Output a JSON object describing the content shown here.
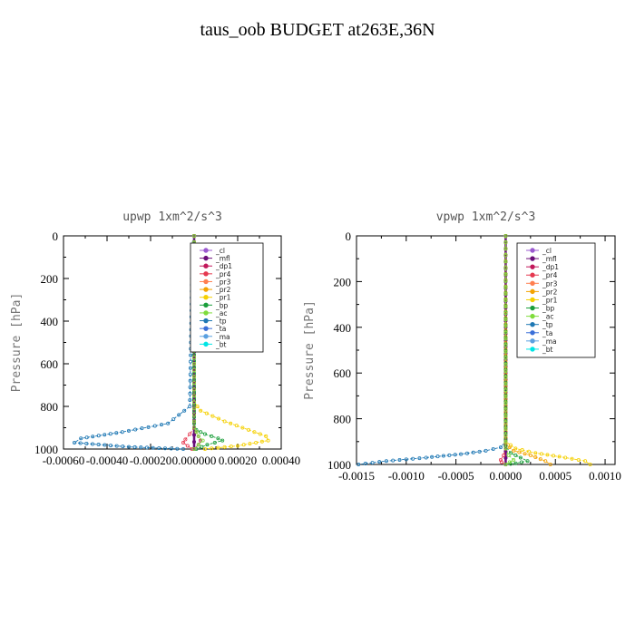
{
  "title": "taus_oob  BUDGET at263E,36N",
  "legend": [
    {
      "name": "_cl",
      "color": "#9b59d0"
    },
    {
      "name": "_mfl",
      "color": "#6a0d7a"
    },
    {
      "name": "_dp1",
      "color": "#c2185b"
    },
    {
      "name": "_pr4",
      "color": "#e53950"
    },
    {
      "name": "_pr3",
      "color": "#ff7f50"
    },
    {
      "name": "_pr2",
      "color": "#f4a300"
    },
    {
      "name": "_pr1",
      "color": "#f5d000"
    },
    {
      "name": "_bp",
      "color": "#1a9e3a"
    },
    {
      "name": "_ac",
      "color": "#7fdc3c"
    },
    {
      "name": "_tp",
      "color": "#1f78b4"
    },
    {
      "name": "_ta",
      "color": "#3a6fd8"
    },
    {
      "name": "_ma",
      "color": "#5aa0e0"
    },
    {
      "name": "_bt",
      "color": "#00e5e5"
    }
  ],
  "chart_data": [
    {
      "type": "line",
      "title": "upwp   1xm^2/s^3",
      "ylabel": "Pressure [hPa]",
      "xlim": [
        -0.0006,
        0.0004
      ],
      "ylim": [
        1000,
        0
      ],
      "x_ticks": [
        "-0.00060",
        "-0.00040",
        "-0.00020",
        "0.000000",
        "0.00020",
        "0.00040"
      ],
      "x_tick_values": [
        -0.0006,
        -0.0004,
        -0.0002,
        0.0,
        0.0002,
        0.0004
      ],
      "y_ticks": [
        "0",
        "200",
        "400",
        "600",
        "800",
        "1000"
      ],
      "y_tick_values": [
        0,
        200,
        400,
        600,
        800,
        1000
      ],
      "series": [
        {
          "name": "_cl",
          "x": [
            0,
            0,
            0,
            0,
            0,
            0,
            0
          ],
          "y": [
            0,
            200,
            400,
            600,
            800,
            900,
            1000
          ]
        },
        {
          "name": "_mfl",
          "x": [
            0,
            0,
            0,
            0,
            0,
            0,
            0
          ],
          "y": [
            0,
            200,
            400,
            600,
            800,
            900,
            1000
          ]
        },
        {
          "name": "_tp",
          "x": [
            0,
            -1e-05,
            -2e-05,
            -0.00012,
            -0.00033,
            -0.00052,
            -0.00055,
            -0.0003,
            -5e-05
          ],
          "y": [
            0,
            200,
            800,
            880,
            920,
            950,
            970,
            990,
            1000
          ]
        },
        {
          "name": "_pr1",
          "x": [
            0,
            0,
            3e-05,
            0.00014,
            0.00025,
            0.00033,
            0.00034,
            0.0002,
            5e-05
          ],
          "y": [
            0,
            780,
            820,
            870,
            910,
            940,
            960,
            985,
            1000
          ]
        },
        {
          "name": "_bp",
          "x": [
            0,
            0,
            1e-05,
            5e-05,
            0.00011,
            0.00013,
            6e-05,
            1e-05
          ],
          "y": [
            0,
            880,
            910,
            930,
            950,
            960,
            980,
            1000
          ]
        },
        {
          "name": "_pr4",
          "x": [
            0,
            0,
            -2e-05,
            -4e-05,
            -5e-05,
            -3e-05,
            -1e-05
          ],
          "y": [
            0,
            900,
            930,
            955,
            970,
            985,
            1000
          ]
        },
        {
          "name": "_dp1",
          "x": [
            0,
            0,
            2e-05,
            3e-05,
            2e-05,
            0
          ],
          "y": [
            0,
            900,
            940,
            960,
            980,
            1000
          ]
        },
        {
          "name": "_ac",
          "x": [
            0,
            0,
            2e-05,
            4e-05,
            2e-05,
            0
          ],
          "y": [
            0,
            900,
            940,
            960,
            980,
            1000
          ]
        }
      ]
    },
    {
      "type": "line",
      "title": "vpwp   1xm^2/s^3",
      "ylabel": "Pressure [hPa]",
      "xlim": [
        -0.0015,
        0.0011
      ],
      "ylim": [
        1000,
        0
      ],
      "x_ticks": [
        "-0.0015",
        "-0.0010",
        "-0.0005",
        "0.0000",
        "0.0005",
        "0.0010"
      ],
      "x_tick_values": [
        -0.0015,
        -0.001,
        -0.0005,
        0.0,
        0.0005,
        0.001
      ],
      "y_ticks": [
        "0",
        "200",
        "400",
        "600",
        "800",
        "1000"
      ],
      "y_tick_values": [
        0,
        200,
        400,
        600,
        800,
        1000
      ],
      "series": [
        {
          "name": "_cl",
          "x": [
            0,
            0,
            0,
            0,
            0,
            0
          ],
          "y": [
            0,
            200,
            400,
            600,
            800,
            1000
          ]
        },
        {
          "name": "_mfl",
          "x": [
            0,
            0,
            0,
            0,
            0,
            0
          ],
          "y": [
            0,
            200,
            400,
            600,
            800,
            1000
          ]
        },
        {
          "name": "_tp",
          "x": [
            0,
            0,
            -5e-05,
            -0.0002,
            -0.00045,
            -0.0008,
            -0.0012,
            -0.00148
          ],
          "y": [
            0,
            900,
            925,
            940,
            955,
            970,
            985,
            1000
          ]
        },
        {
          "name": "_pr1",
          "x": [
            0,
            0,
            0.0001,
            0.0003,
            0.0006,
            0.0008,
            0.00085
          ],
          "y": [
            0,
            900,
            930,
            950,
            970,
            985,
            1000
          ]
        },
        {
          "name": "_pr2",
          "x": [
            0,
            0,
            8e-05,
            0.00025,
            0.0004,
            0.00045
          ],
          "y": [
            0,
            910,
            940,
            960,
            985,
            1000
          ]
        },
        {
          "name": "_bp",
          "x": [
            0,
            0,
            5e-05,
            0.00015,
            0.00022,
            0.0001,
            0
          ],
          "y": [
            0,
            920,
            950,
            970,
            985,
            995,
            1000
          ]
        },
        {
          "name": "_pr4",
          "x": [
            0,
            0,
            -2e-05,
            -5e-05,
            -4e-05,
            0
          ],
          "y": [
            0,
            930,
            960,
            980,
            990,
            1000
          ]
        },
        {
          "name": "_ac",
          "x": [
            0,
            0,
            3e-05,
            8e-05,
            4e-05,
            0
          ],
          "y": [
            0,
            930,
            960,
            980,
            990,
            1000
          ]
        }
      ]
    }
  ]
}
